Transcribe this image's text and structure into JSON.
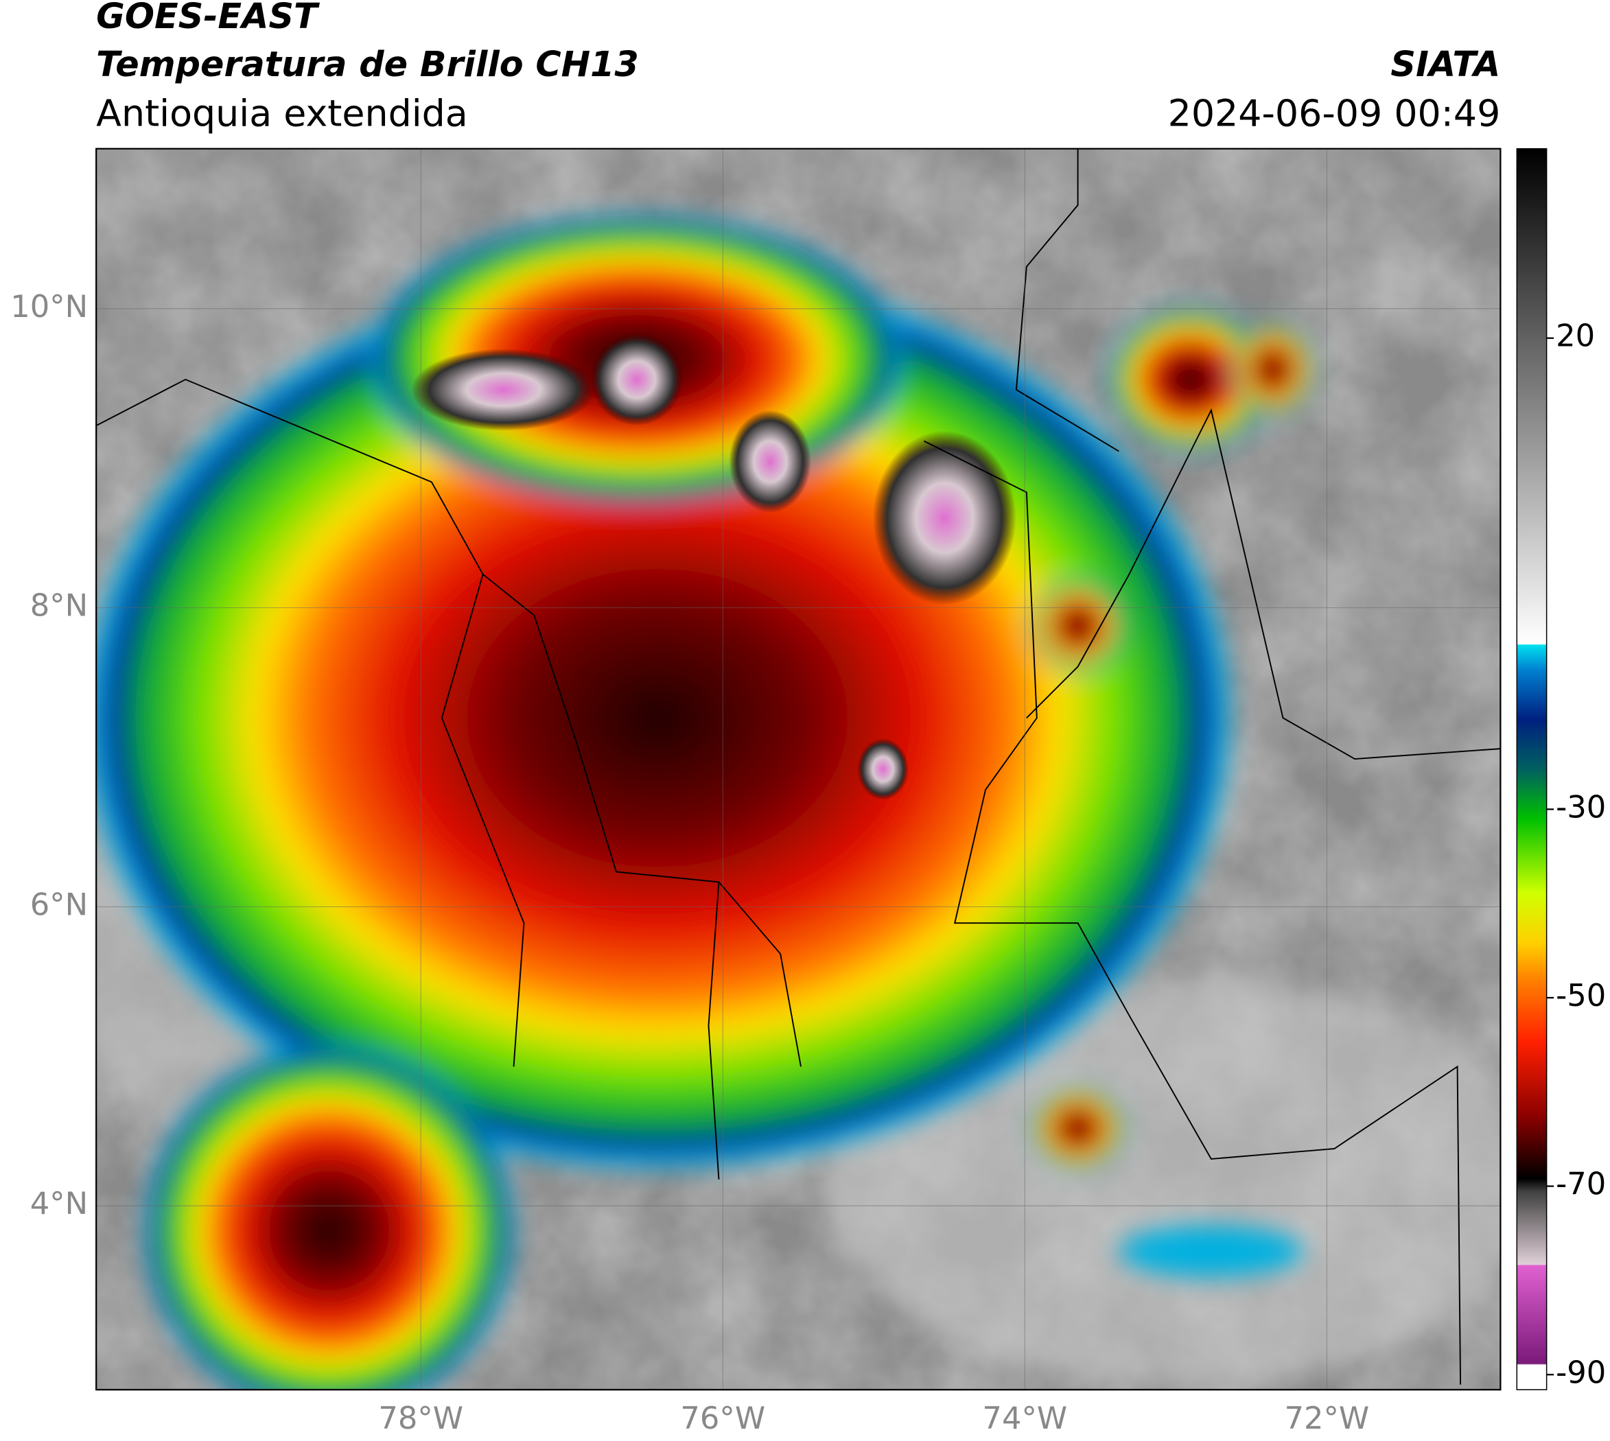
{
  "header": {
    "title_line1": "GOES-EAST",
    "title_line2": "Temperatura de Brillo CH13",
    "subtitle": "Antioquia extendida",
    "source": "SIATA",
    "datetime": "2024-06-09 00:49"
  },
  "map": {
    "xlim": [
      -80.15,
      -70.85
    ],
    "ylim": [
      2.77,
      11.07
    ],
    "xticks": [
      {
        "value": -78,
        "label": "78°W"
      },
      {
        "value": -76,
        "label": "76°W"
      },
      {
        "value": -74,
        "label": "74°W"
      },
      {
        "value": -72,
        "label": "72°W"
      }
    ],
    "yticks": [
      {
        "value": 4,
        "label": "4°N"
      },
      {
        "value": 6,
        "label": "6°N"
      },
      {
        "value": 8,
        "label": "8°N"
      },
      {
        "value": 10,
        "label": "10°N"
      }
    ]
  },
  "colorbar": {
    "lim": [
      -91.6,
      40.1
    ],
    "ticks": [
      20,
      -30,
      -50,
      -70,
      -90
    ]
  }
}
